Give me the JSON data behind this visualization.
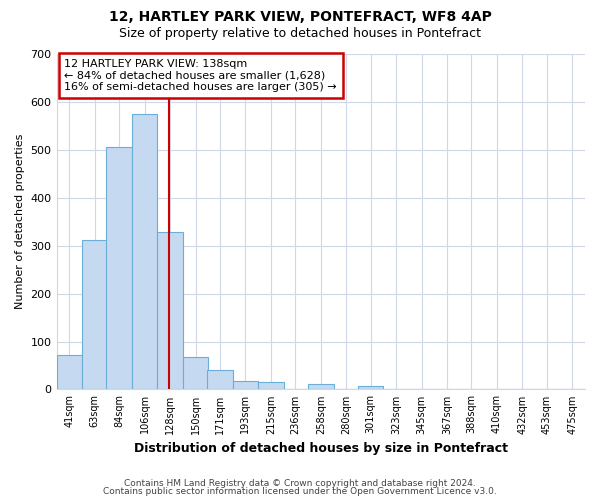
{
  "title": "12, HARTLEY PARK VIEW, PONTEFRACT, WF8 4AP",
  "subtitle": "Size of property relative to detached houses in Pontefract",
  "xlabel": "Distribution of detached houses by size in Pontefract",
  "ylabel": "Number of detached properties",
  "bar_labels": [
    "41sqm",
    "63sqm",
    "84sqm",
    "106sqm",
    "128sqm",
    "150sqm",
    "171sqm",
    "193sqm",
    "215sqm",
    "236sqm",
    "258sqm",
    "280sqm",
    "301sqm",
    "323sqm",
    "345sqm",
    "367sqm",
    "388sqm",
    "410sqm",
    "432sqm",
    "453sqm",
    "475sqm"
  ],
  "bar_values": [
    72,
    311,
    505,
    575,
    328,
    68,
    40,
    18,
    15,
    0,
    11,
    0,
    7,
    0,
    0,
    0,
    0,
    0,
    0,
    0,
    0
  ],
  "bar_color": "#c5d9f0",
  "bar_edge_color": "#6baed6",
  "property_line_x": 138,
  "bin_edges": [
    41,
    63,
    84,
    106,
    128,
    150,
    171,
    193,
    215,
    236,
    258,
    280,
    301,
    323,
    345,
    367,
    388,
    410,
    432,
    453,
    475
  ],
  "bin_width": 22,
  "ylim": [
    0,
    700
  ],
  "yticks": [
    0,
    100,
    200,
    300,
    400,
    500,
    600,
    700
  ],
  "annotation_title": "12 HARTLEY PARK VIEW: 138sqm",
  "annotation_line1": "← 84% of detached houses are smaller (1,628)",
  "annotation_line2": "16% of semi-detached houses are larger (305) →",
  "vline_color": "#cc0000",
  "annotation_box_edgecolor": "#cc0000",
  "footer1": "Contains HM Land Registry data © Crown copyright and database right 2024.",
  "footer2": "Contains public sector information licensed under the Open Government Licence v3.0.",
  "background_color": "#ffffff",
  "grid_color": "#d0d8e8",
  "title_fontsize": 10,
  "subtitle_fontsize": 9,
  "ylabel_fontsize": 8,
  "xlabel_fontsize": 9,
  "tick_fontsize": 7,
  "ann_fontsize": 8,
  "footer_fontsize": 6.5
}
